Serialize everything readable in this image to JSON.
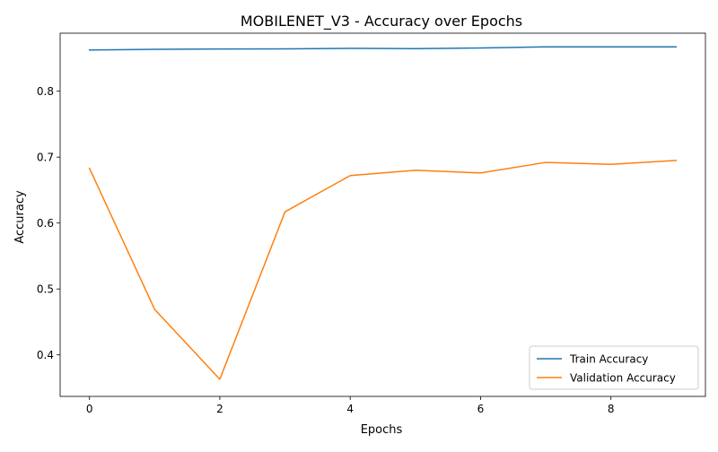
{
  "chart_data": {
    "type": "line",
    "title": "MOBILENET_V3 - Accuracy over Epochs",
    "xlabel": "Epochs",
    "ylabel": "Accuracy",
    "x": [
      0,
      1,
      2,
      3,
      4,
      5,
      6,
      7,
      8,
      9
    ],
    "xlim": [
      -0.45,
      9.45
    ],
    "ylim": [
      0.337,
      0.888
    ],
    "xticks": [
      0,
      2,
      4,
      6,
      8
    ],
    "yticks": [
      0.4,
      0.5,
      0.6,
      0.7,
      0.8
    ],
    "grid": false,
    "legend_position": "lower-right",
    "series": [
      {
        "name": "Train Accuracy",
        "color": "#1f77b4",
        "values": [
          0.8625,
          0.8635,
          0.864,
          0.8642,
          0.865,
          0.8646,
          0.8656,
          0.8672,
          0.8672,
          0.8672
        ]
      },
      {
        "name": "Validation Accuracy",
        "color": "#ff7f0e",
        "values": [
          0.683,
          0.469,
          0.363,
          0.617,
          0.672,
          0.68,
          0.676,
          0.692,
          0.689,
          0.695
        ]
      }
    ]
  }
}
